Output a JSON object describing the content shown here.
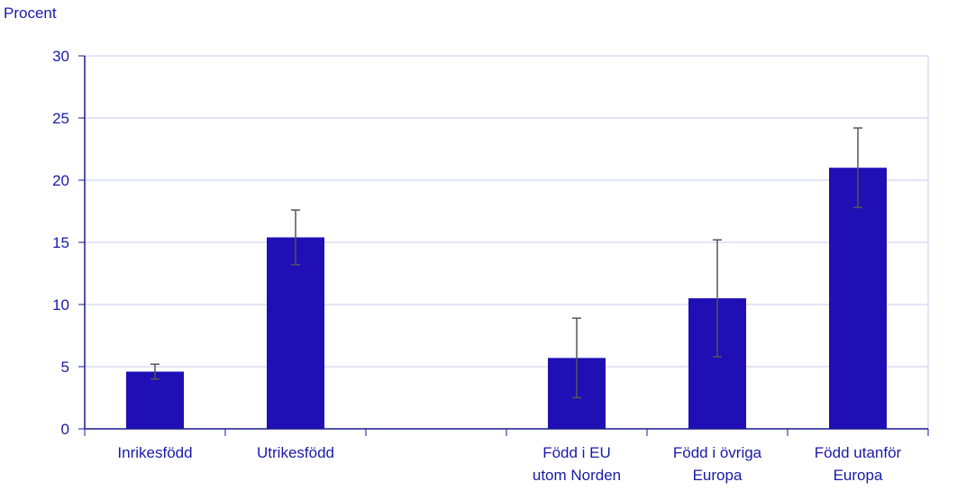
{
  "chart_data": {
    "type": "bar",
    "ylabel": "Procent",
    "ylim": [
      0,
      30
    ],
    "yticks": [
      0,
      5,
      10,
      15,
      20,
      25,
      30
    ],
    "grid": true,
    "categories": [
      [
        "Inrikesfödd"
      ],
      [
        "Utrikesfödd"
      ],
      [],
      [
        "Född i EU",
        "utom Norden"
      ],
      [
        "Född i övriga",
        "Europa"
      ],
      [
        "Född utanför",
        "Europa"
      ]
    ],
    "values": [
      4.6,
      15.4,
      null,
      5.7,
      10.5,
      21.0
    ],
    "error_low": [
      4.0,
      13.2,
      null,
      2.5,
      5.8,
      17.8
    ],
    "error_high": [
      5.2,
      17.6,
      null,
      8.9,
      15.2,
      24.2
    ]
  },
  "colors": {
    "bar": "#1f0fb5",
    "text": "#1a1aa6",
    "grid": "#c9c9ee",
    "axis": "#1a1a8c",
    "error": "#555555"
  }
}
